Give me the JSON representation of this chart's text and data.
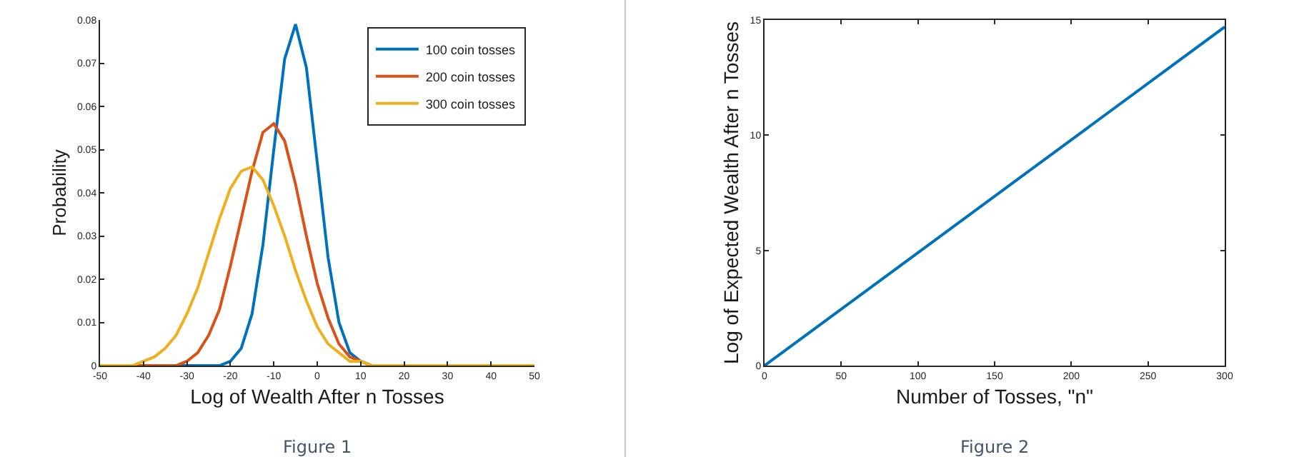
{
  "chart_data": [
    {
      "type": "line",
      "xlabel": "Log of Wealth After n Tosses",
      "ylabel": "Probability",
      "x": [
        -50,
        -47.5,
        -45,
        -42.5,
        -40,
        -37.5,
        -35,
        -32.5,
        -30,
        -27.5,
        -25,
        -22.5,
        -20,
        -17.5,
        -15,
        -12.5,
        -10,
        -7.5,
        -5,
        -2.5,
        0,
        2.5,
        5,
        7.5,
        10,
        12.5,
        15,
        17.5,
        20,
        30,
        40,
        50
      ],
      "series": [
        {
          "name": "100 coin tosses",
          "color": "#0072bd",
          "values": [
            null,
            null,
            null,
            null,
            null,
            null,
            0,
            0,
            0,
            0,
            0,
            0,
            0.001,
            0.004,
            0.012,
            0.028,
            0.05,
            0.071,
            0.079,
            0.069,
            0.047,
            0.025,
            0.01,
            0.003,
            0.001,
            0,
            null,
            null,
            null,
            null,
            null,
            null
          ]
        },
        {
          "name": "200 coin tosses",
          "color": "#d95319",
          "values": [
            null,
            null,
            0,
            0,
            0,
            0,
            0,
            0,
            0.001,
            0.003,
            0.007,
            0.013,
            0.023,
            0.034,
            0.045,
            0.054,
            0.056,
            0.052,
            0.042,
            0.03,
            0.019,
            0.011,
            0.005,
            0.002,
            0.001,
            0,
            null,
            null,
            null,
            null,
            null,
            null
          ]
        },
        {
          "name": "300 coin tosses",
          "color": "#edb120",
          "values": [
            0,
            0,
            0,
            0,
            0.001,
            0.002,
            0.004,
            0.007,
            0.012,
            0.018,
            0.026,
            0.034,
            0.041,
            0.045,
            0.046,
            0.043,
            0.037,
            0.03,
            0.022,
            0.015,
            0.009,
            0.005,
            0.003,
            0.001,
            0.001,
            0,
            0,
            0,
            0,
            0,
            0,
            0
          ]
        }
      ],
      "xlim": [
        -50,
        50
      ],
      "xticks": [
        -50,
        -40,
        -30,
        -20,
        -10,
        0,
        10,
        20,
        30,
        40,
        50
      ],
      "ylim": [
        0,
        0.08
      ],
      "yticks": [
        0,
        0.01,
        0.02,
        0.03,
        0.04,
        0.05,
        0.06,
        0.07,
        0.08
      ],
      "legend": "top right",
      "annotations": [
        "Figure 1"
      ]
    },
    {
      "type": "line",
      "xlabel": "Number of Tosses, \"n\"",
      "ylabel": "Log of Expected Wealth After n Tosses",
      "x": [
        0,
        300
      ],
      "series": [
        {
          "color": "#0072bd",
          "values": [
            0,
            14.7
          ]
        }
      ],
      "xlim": [
        0,
        300
      ],
      "xticks": [
        0,
        50,
        100,
        150,
        200,
        250,
        300
      ],
      "ylim": [
        0,
        15
      ],
      "yticks": [
        0,
        5,
        10,
        15
      ],
      "legend": false,
      "annotations": [
        "Figure 2"
      ]
    }
  ]
}
